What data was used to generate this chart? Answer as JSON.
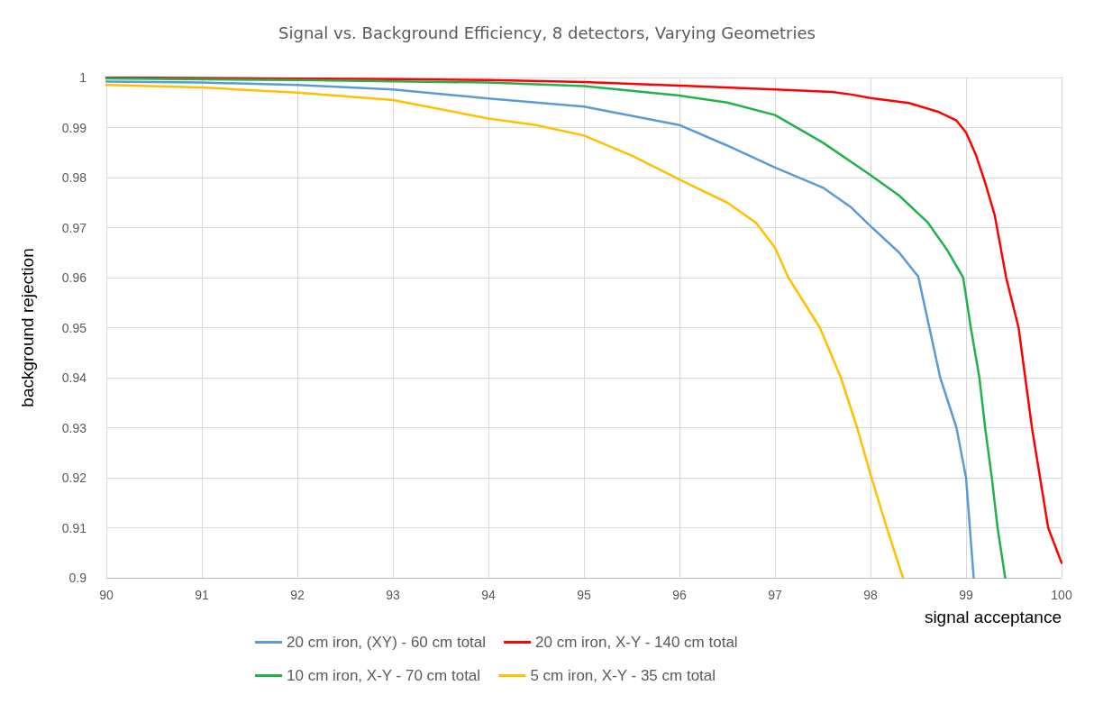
{
  "chart_data": {
    "type": "line",
    "title": "Signal vs. Background Efficiency, 8 detectors, Varying Geometries",
    "xlabel": "signal acceptance",
    "ylabel": "background rejection",
    "xlim": [
      90,
      100
    ],
    "xticks": [
      90,
      91,
      92,
      93,
      94,
      95,
      96,
      97,
      98,
      99,
      100
    ],
    "ylim": [
      0.9,
      1
    ],
    "yticks": [
      0.9,
      0.91,
      0.92,
      0.93,
      0.94,
      0.95,
      0.96,
      0.97,
      0.98,
      0.99,
      1
    ],
    "grid": true,
    "legend": "bottom",
    "marker": "none",
    "line_style": "solid",
    "series": [
      {
        "name": "20 cm iron, (XY) - 60 cm total",
        "color": "#5b9bd5",
        "x": [
          90,
          91,
          92,
          93,
          94,
          95,
          96,
          96.5,
          97,
          97.5,
          97.8,
          98,
          98.3,
          98.5,
          98.73,
          98.9,
          99,
          99.04,
          99.08
        ],
        "values": [
          0.9992,
          0.999,
          0.9985,
          0.9976,
          0.9958,
          0.9942,
          0.9905,
          0.9864,
          0.982,
          0.978,
          0.974,
          0.9703,
          0.965,
          0.9602,
          0.94,
          0.93,
          0.92,
          0.91,
          0.9
        ]
      },
      {
        "name": "20 cm iron, X-Y - 140 cm total",
        "color": "#ff0000",
        "x": [
          90,
          93,
          94,
          95,
          96,
          97,
          97.6,
          97.8,
          98,
          98.4,
          98.7,
          98.9,
          99,
          99.1,
          99.2,
          99.3,
          99.42,
          99.55,
          99.69,
          99.86,
          100
        ],
        "values": [
          1,
          0.9997,
          0.9995,
          0.9991,
          0.9984,
          0.9976,
          0.9971,
          0.9966,
          0.9959,
          0.9949,
          0.9932,
          0.9914,
          0.989,
          0.9847,
          0.979,
          0.9725,
          0.96,
          0.95,
          0.93,
          0.91,
          0.903
        ]
      },
      {
        "name": "10 cm iron, X-Y - 70 cm total",
        "color": "#22b14c",
        "x": [
          90,
          92,
          94,
          95,
          96,
          96.5,
          97,
          97.5,
          98,
          98.3,
          98.6,
          98.8,
          98.97,
          99.05,
          99.14,
          99.2,
          99.27,
          99.33,
          99.41
        ],
        "values": [
          0.9998,
          0.9995,
          0.999,
          0.9983,
          0.9964,
          0.995,
          0.9925,
          0.987,
          0.9805,
          0.9764,
          0.971,
          0.9656,
          0.96,
          0.95,
          0.94,
          0.93,
          0.92,
          0.91,
          0.9
        ]
      },
      {
        "name": "5 cm iron, X-Y - 35 cm total",
        "color": "#ffc000",
        "x": [
          90,
          91,
          92,
          93,
          94,
          94.5,
          95,
          95.5,
          96,
          96.5,
          96.8,
          97,
          97.14,
          97.47,
          97.69,
          97.86,
          98.01,
          98.17,
          98.34
        ],
        "values": [
          0.9985,
          0.998,
          0.997,
          0.9955,
          0.9918,
          0.9905,
          0.9884,
          0.9844,
          0.9796,
          0.975,
          0.971,
          0.966,
          0.96,
          0.95,
          0.94,
          0.93,
          0.92,
          0.91,
          0.9
        ]
      }
    ]
  }
}
